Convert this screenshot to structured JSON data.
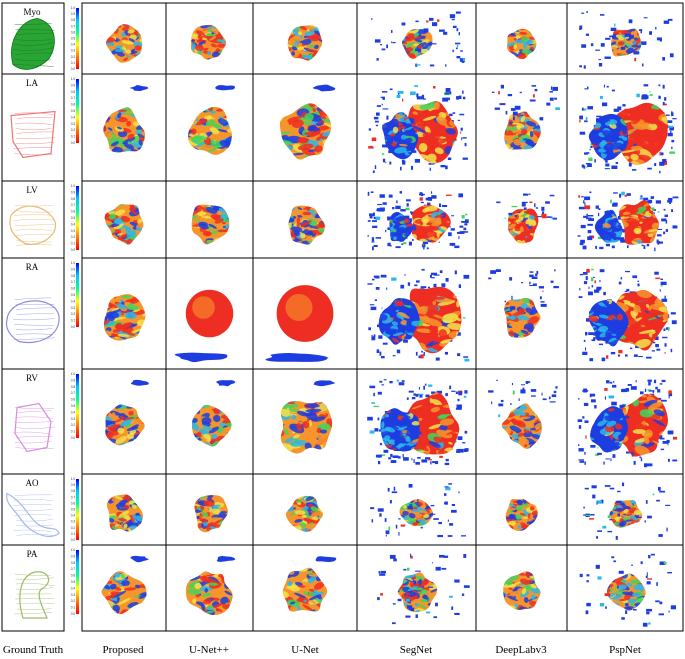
{
  "rows": [
    {
      "key": "myo",
      "label": "Myo",
      "color": "#1fa02a",
      "shape": "myo"
    },
    {
      "key": "la",
      "label": "LA",
      "color": "#ee7777",
      "shape": "la"
    },
    {
      "key": "lv",
      "label": "LV",
      "color": "#e9b872",
      "shape": "lv"
    },
    {
      "key": "ra",
      "label": "RA",
      "color": "#8c8ce6",
      "shape": "ra"
    },
    {
      "key": "rv",
      "label": "RV",
      "color": "#d98cdc",
      "shape": "rv"
    },
    {
      "key": "ao",
      "label": "AO",
      "color": "#a3b8ea",
      "shape": "ao"
    },
    {
      "key": "pa",
      "label": "PA",
      "color": "#9dbb6a",
      "shape": "pa"
    }
  ],
  "columns": [
    {
      "key": "gt",
      "label": "Ground Truth"
    },
    {
      "key": "proposed",
      "label": "Proposed"
    },
    {
      "key": "unetpp",
      "label": "U-Net++"
    },
    {
      "key": "unet",
      "label": "U-Net"
    },
    {
      "key": "segnet",
      "label": "SegNet"
    },
    {
      "key": "deeplab",
      "label": "DeepLabv3"
    },
    {
      "key": "pspnet",
      "label": "PspNet"
    }
  ],
  "colorbar": {
    "ticks": [
      "1.0",
      "0.9",
      "0.8",
      "0.7",
      "0.6",
      "0.5",
      "0.4",
      "0.3",
      "0.2",
      "0.1",
      "0.0"
    ],
    "colors": [
      "#0000ff",
      "#00c8ff",
      "#00ff96",
      "#ffff00",
      "#ff7800",
      "#ff0000"
    ]
  },
  "palette": {
    "blue": "#1d3de0",
    "cyan": "#2ab7ea",
    "green": "#3fd65a",
    "yellow": "#f2e34a",
    "orange": "#f6952c",
    "red": "#ee2e22"
  }
}
